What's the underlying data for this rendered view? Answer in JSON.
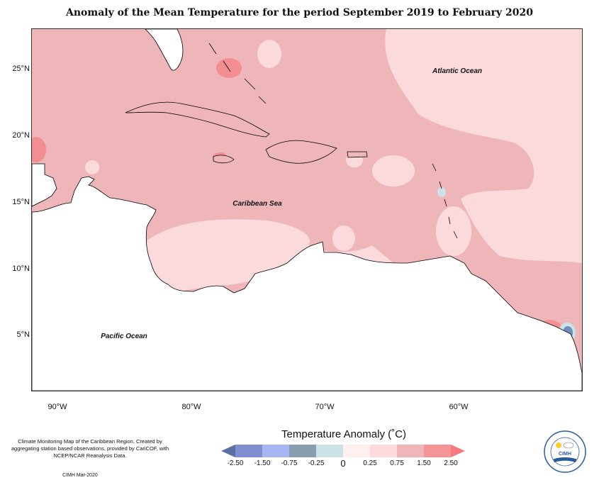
{
  "title": "Anomaly of the Mean Temperature for the period September 2019 to February 2020",
  "map": {
    "latitude_labels": [
      "25°N",
      "20°N",
      "15°N",
      "10°N",
      "5°N"
    ],
    "longitude_labels": [
      "90°W",
      "80°W",
      "70°W",
      "60°W"
    ],
    "ocean_labels": {
      "atlantic": "Atlantic Ocean",
      "caribbean": "Caribbean Sea",
      "pacific": "Pacific Ocean"
    },
    "colors": {
      "land": "#ffffff",
      "ocean_base": "#efb6ba",
      "light": "#fbdadc",
      "warm": "#f28d91",
      "cool": "#6f8fb8",
      "coast": "#000000"
    }
  },
  "legend": {
    "title": "Temperature Anomaly (˚C)",
    "ticks": [
      "-2.50",
      "-1.50",
      "-0.75",
      "-0.25",
      "0",
      "0.25",
      "0.75",
      "1.50",
      "2.50"
    ],
    "colors": [
      "#5b6ea6",
      "#7f8fd0",
      "#a7b7f5",
      "#8a9db0",
      "#cde2e6",
      "#fff0f0",
      "#fcd9dc",
      "#efb6ba",
      "#f59497",
      "#f47a80"
    ]
  },
  "footer": {
    "description": "Climate Monitoring Map of the Caribbean Region. Created by aggregating station based observations, provided by CariCOF, with NCEP/NCAR Reanalysis Data.",
    "credit": "CIMH Mar-2020"
  },
  "logo": {
    "text": "CIMH"
  }
}
